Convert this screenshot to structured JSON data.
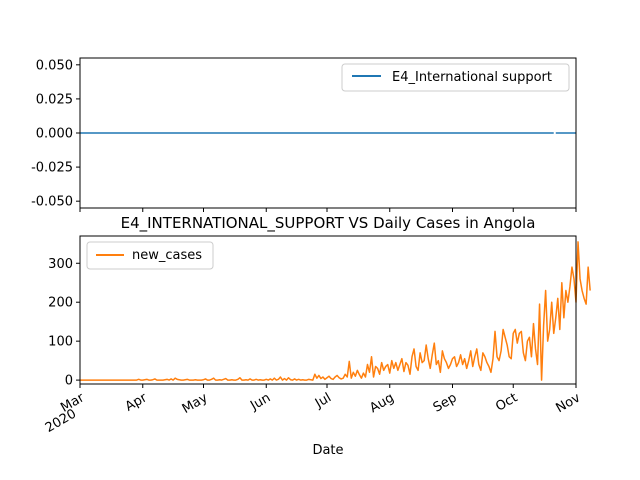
{
  "chart_data": [
    {
      "type": "line",
      "panel": "top",
      "title": "",
      "xlabel": "",
      "ylabel": "",
      "ylim": [
        -0.055,
        0.055
      ],
      "yticks": [
        "0.050",
        "0.025",
        "0.000",
        "-0.025",
        "-0.050"
      ],
      "ytick_values": [
        0.05,
        0.025,
        0.0,
        -0.025,
        -0.05
      ],
      "grid": false,
      "legend_position": "top-right",
      "series": [
        {
          "name": "E4_International support",
          "color": "#1f77b4",
          "segments": [
            {
              "x": [
                "2020-03-01",
                "2020-10-21"
              ],
              "y": [
                0,
                0
              ]
            },
            {
              "x": [
                "2020-10-22",
                "2020-11-01"
              ],
              "y": [
                0,
                0
              ]
            }
          ]
        }
      ]
    },
    {
      "type": "line",
      "panel": "bottom",
      "title": "E4_INTERNATIONAL_SUPPORT VS Daily Cases in Angola",
      "xlabel": "Date",
      "ylabel": "",
      "ylim": [
        -10,
        370
      ],
      "yticks": [
        "0",
        "100",
        "200",
        "300"
      ],
      "ytick_values": [
        0,
        100,
        200,
        300
      ],
      "xlim": [
        "2020-03-01",
        "2020-11-01"
      ],
      "xticks": [
        {
          "date": "2020-03-01",
          "label": "Mar",
          "sublabel": "2020"
        },
        {
          "date": "2020-04-01",
          "label": "Apr",
          "sublabel": ""
        },
        {
          "date": "2020-05-01",
          "label": "May",
          "sublabel": ""
        },
        {
          "date": "2020-06-01",
          "label": "Jun",
          "sublabel": ""
        },
        {
          "date": "2020-07-01",
          "label": "Jul",
          "sublabel": ""
        },
        {
          "date": "2020-08-01",
          "label": "Aug",
          "sublabel": ""
        },
        {
          "date": "2020-09-01",
          "label": "Sep",
          "sublabel": ""
        },
        {
          "date": "2020-10-01",
          "label": "Oct",
          "sublabel": ""
        },
        {
          "date": "2020-11-01",
          "label": "Nov",
          "sublabel": ""
        }
      ],
      "grid": false,
      "legend_position": "top-left",
      "series": [
        {
          "name": "new_cases",
          "color": "#ff7f0e",
          "x_start": "2020-03-01",
          "step_days": 1,
          "values": [
            0,
            0,
            0,
            0,
            0,
            0,
            0,
            0,
            0,
            0,
            0,
            0,
            0,
            0,
            0,
            0,
            0,
            0,
            0,
            0,
            0,
            0,
            0,
            0,
            0,
            0,
            0,
            0,
            0,
            2,
            0,
            0,
            1,
            2,
            0,
            0,
            1,
            3,
            0,
            0,
            0,
            0,
            1,
            2,
            0,
            3,
            0,
            5,
            2,
            1,
            0,
            0,
            1,
            2,
            0,
            0,
            0,
            1,
            0,
            0,
            0,
            1,
            3,
            0,
            0,
            2,
            5,
            0,
            0,
            1,
            0,
            2,
            4,
            0,
            0,
            1,
            0,
            0,
            2,
            6,
            0,
            0,
            1,
            0,
            3,
            0,
            0,
            2,
            0,
            1,
            0,
            0,
            2,
            0,
            3,
            0,
            5,
            0,
            2,
            8,
            0,
            4,
            0,
            6,
            1,
            0,
            3,
            0,
            2,
            0,
            1,
            0,
            0,
            2,
            1,
            0,
            15,
            5,
            12,
            4,
            8,
            2,
            6,
            10,
            4,
            2,
            8,
            12,
            6,
            3,
            5,
            15,
            8,
            48,
            5,
            20,
            10,
            25,
            14,
            5,
            18,
            8,
            40,
            20,
            60,
            8,
            35,
            30,
            15,
            45,
            25,
            35,
            40,
            18,
            50,
            30,
            45,
            25,
            40,
            55,
            22,
            45,
            38,
            15,
            60,
            80,
            35,
            25,
            70,
            45,
            50,
            90,
            55,
            30,
            65,
            95,
            40,
            50,
            20,
            75,
            55,
            45,
            30,
            40,
            55,
            60,
            35,
            45,
            65,
            40,
            55,
            30,
            50,
            75,
            35,
            60,
            80,
            40,
            25,
            70,
            60,
            45,
            35,
            20,
            55,
            125,
            60,
            50,
            75,
            130,
            110,
            90,
            60,
            55,
            120,
            130,
            95,
            120,
            125,
            70,
            50,
            100,
            110,
            60,
            145,
            80,
            40,
            195,
            0,
            140,
            230,
            100,
            130,
            200,
            120,
            160,
            210,
            130,
            250,
            160,
            230,
            200,
            240,
            290,
            260,
            200,
            355,
            260,
            230,
            210,
            195,
            290,
            230
          ]
        }
      ]
    }
  ]
}
